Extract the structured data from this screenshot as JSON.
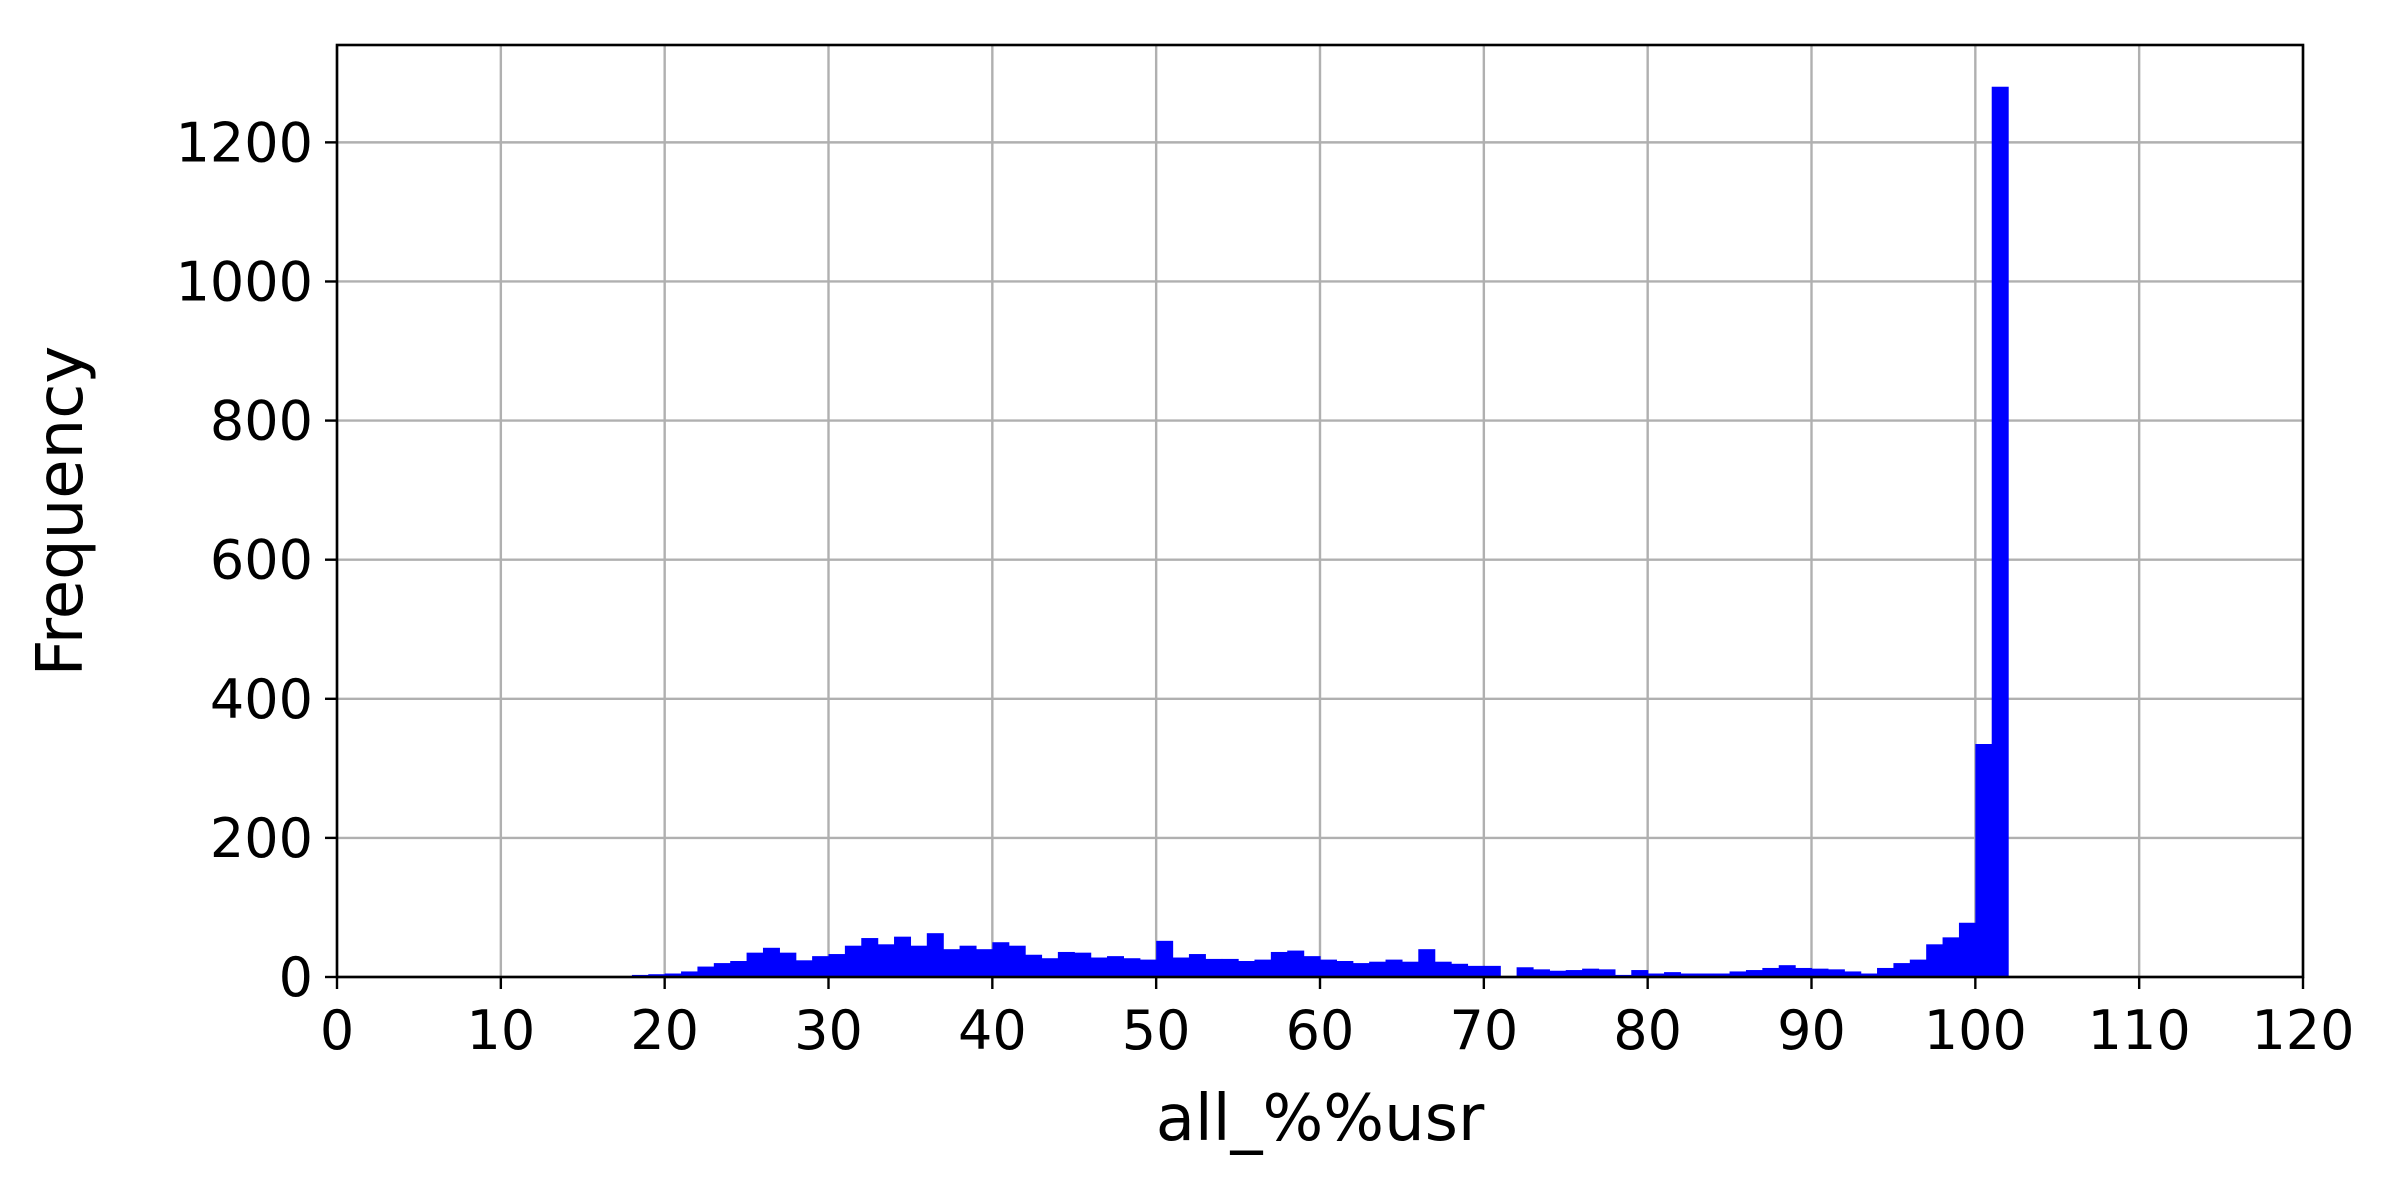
{
  "chart_data": {
    "type": "bar",
    "title": "",
    "xlabel": "all_%%usr",
    "ylabel": "Frequency",
    "xlim": [
      0,
      120
    ],
    "ylim": [
      0,
      1340
    ],
    "xticks": [
      0,
      10,
      20,
      30,
      40,
      50,
      60,
      70,
      80,
      90,
      100,
      110,
      120
    ],
    "yticks": [
      0,
      200,
      400,
      600,
      800,
      1000,
      1200
    ],
    "grid": true,
    "bar_color": "#0000ff",
    "bins": {
      "start": 0,
      "width": 1,
      "values": [
        0,
        0,
        0,
        0,
        0,
        0,
        0,
        0,
        0,
        0,
        0,
        0,
        0,
        0,
        0,
        0,
        0,
        0,
        3,
        4,
        5,
        8,
        15,
        20,
        23,
        35,
        42,
        35,
        24,
        30,
        33,
        45,
        56,
        47,
        58,
        45,
        63,
        40,
        45,
        40,
        50,
        45,
        32,
        27,
        36,
        35,
        28,
        30,
        27,
        25,
        52,
        28,
        33,
        26,
        26,
        23,
        25,
        36,
        38,
        30,
        25,
        23,
        20,
        22,
        25,
        22,
        40,
        22,
        19,
        16,
        16,
        0,
        14,
        11,
        9,
        10,
        12,
        11,
        3,
        10,
        5,
        7,
        5,
        5,
        5,
        8,
        10,
        13,
        17,
        13,
        12,
        11,
        8,
        5,
        13,
        20,
        25,
        47,
        57,
        78,
        335,
        1280
      ]
    }
  }
}
